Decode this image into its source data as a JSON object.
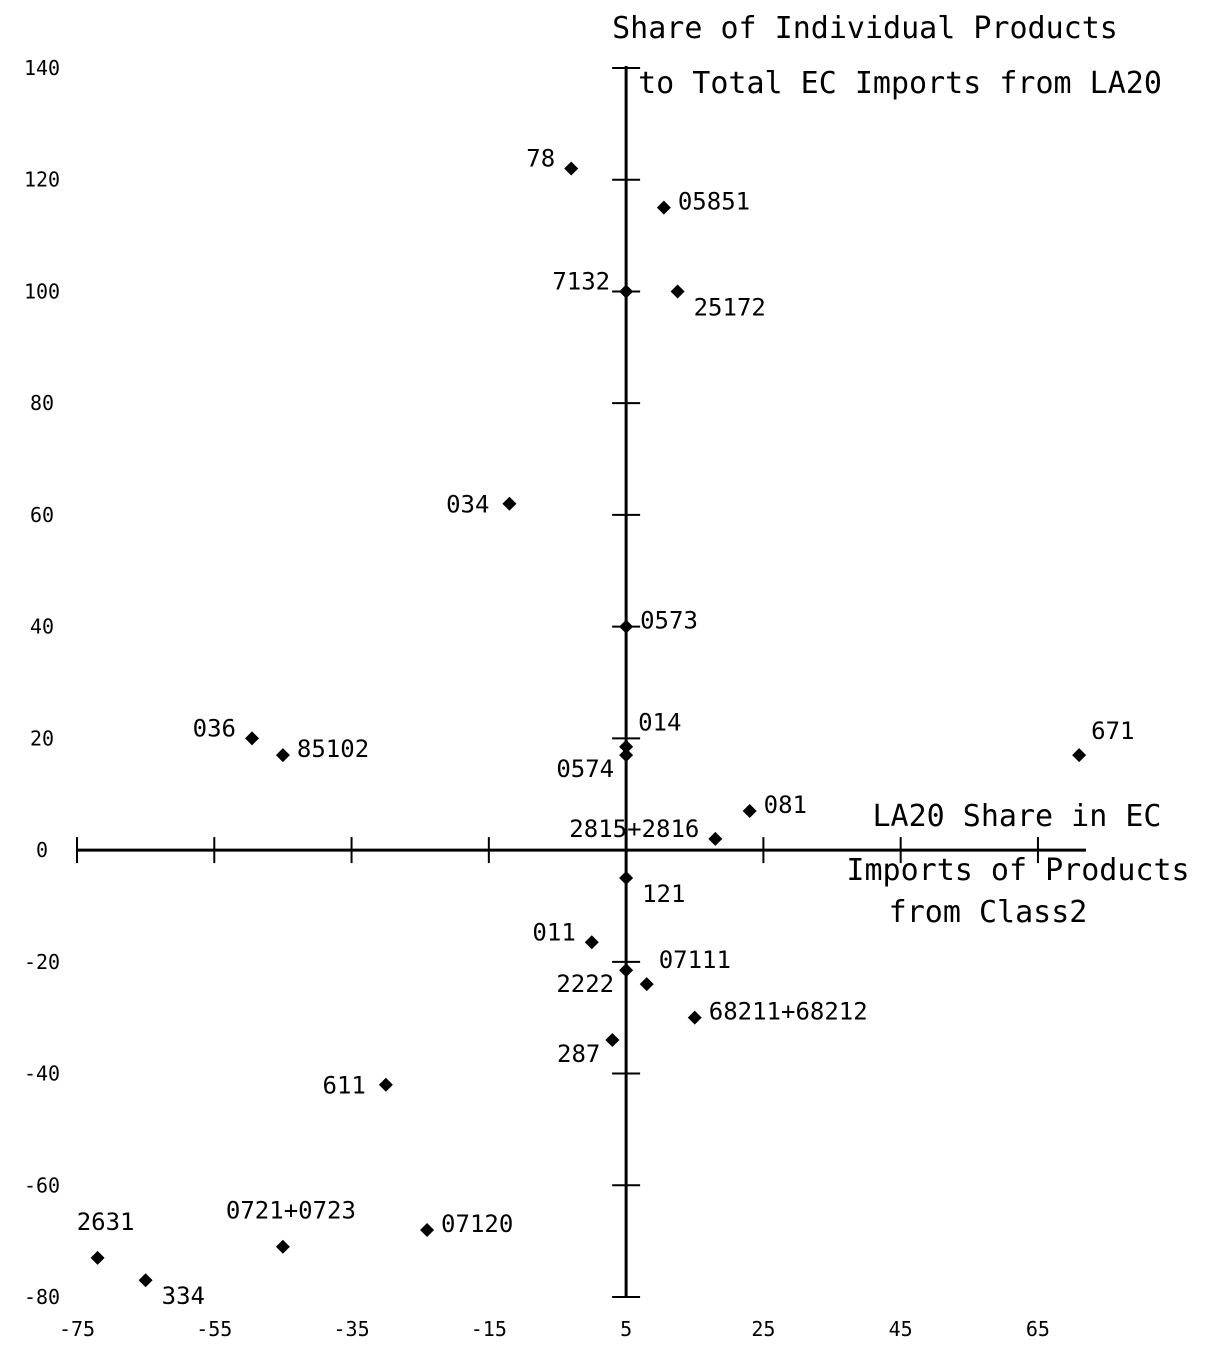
{
  "chart_data": {
    "type": "scatter",
    "title": "",
    "ylabel_lines": [
      "Share of Individual Products",
      "to Total EC Imports from LA20"
    ],
    "xlabel_lines": [
      "LA20 Share in EC",
      "Imports of Products",
      "from Class2"
    ],
    "xlim": [
      -75,
      72
    ],
    "ylim": [
      -80,
      140
    ],
    "x_ticks": [
      -75,
      -55,
      -35,
      -15,
      5,
      25,
      45,
      65
    ],
    "x_tick_labels": [
      "-75",
      "-55",
      "-35",
      "-15",
      "5",
      "25",
      "45",
      "65"
    ],
    "y_ticks": [
      140,
      120,
      100,
      80,
      60,
      40,
      20,
      0,
      -20,
      -40,
      -60,
      -80
    ],
    "y_tick_labels": [
      "140",
      "120",
      "100",
      "80",
      "60",
      "40",
      "20",
      "0",
      "-20",
      "-40",
      "-60",
      "-80"
    ],
    "x_axis_ticks": [
      -75,
      -55,
      -35,
      -15,
      5,
      25,
      45,
      65
    ],
    "y_axis_ticks": [
      -80,
      -60,
      -40,
      -20,
      0,
      20,
      40,
      60,
      80,
      100,
      120,
      140
    ],
    "grid": false,
    "legend": "none",
    "point_color": "#000000",
    "points": [
      {
        "label": "78",
        "x": -3,
        "y": 122,
        "label_pos": "upper-left"
      },
      {
        "label": "05851",
        "x": 10.5,
        "y": 115,
        "label_pos": "right"
      },
      {
        "label": "7132",
        "x": 5,
        "y": 100,
        "label_pos": "upper-left"
      },
      {
        "label": "25172",
        "x": 12.5,
        "y": 100,
        "label_pos": "lower-right"
      },
      {
        "label": "034",
        "x": -12,
        "y": 62,
        "label_pos": "left"
      },
      {
        "label": "0573",
        "x": 5,
        "y": 40,
        "label_pos": "right"
      },
      {
        "label": "014",
        "x": 5,
        "y": 18.5,
        "label_pos": "upper-right"
      },
      {
        "label": "0574",
        "x": 5,
        "y": 17,
        "label_pos": "lower-left"
      },
      {
        "label": "036",
        "x": -49.5,
        "y": 20,
        "label_pos": "upper-left"
      },
      {
        "label": "85102",
        "x": -45,
        "y": 17,
        "label_pos": "right"
      },
      {
        "label": "671",
        "x": 71,
        "y": 17,
        "label_pos": "upper-right"
      },
      {
        "label": "081",
        "x": 23,
        "y": 7,
        "label_pos": "right"
      },
      {
        "label": "2815+2816",
        "x": 18,
        "y": 2,
        "label_pos": "upper-left"
      },
      {
        "label": "121",
        "x": 5,
        "y": -5,
        "label_pos": "lower-right"
      },
      {
        "label": "011",
        "x": 0,
        "y": -16.5,
        "label_pos": "upper-left"
      },
      {
        "label": "2222",
        "x": 5,
        "y": -21.5,
        "label_pos": "lower-left"
      },
      {
        "label": "07111",
        "x": 8,
        "y": -24,
        "label_pos": "upper-right"
      },
      {
        "label": "68211+68212",
        "x": 15,
        "y": -30,
        "label_pos": "right"
      },
      {
        "label": "287",
        "x": 3,
        "y": -34,
        "label_pos": "lower-left"
      },
      {
        "label": "611",
        "x": -30,
        "y": -42,
        "label_pos": "left"
      },
      {
        "label": "07120",
        "x": -24,
        "y": -68,
        "label_pos": "right"
      },
      {
        "label": "0721+0723",
        "x": -45,
        "y": -71,
        "label_pos": "top"
      },
      {
        "label": "2631",
        "x": -72,
        "y": -73,
        "label_pos": "top"
      },
      {
        "label": "334",
        "x": -65,
        "y": -77,
        "label_pos": "lower-right"
      }
    ]
  }
}
